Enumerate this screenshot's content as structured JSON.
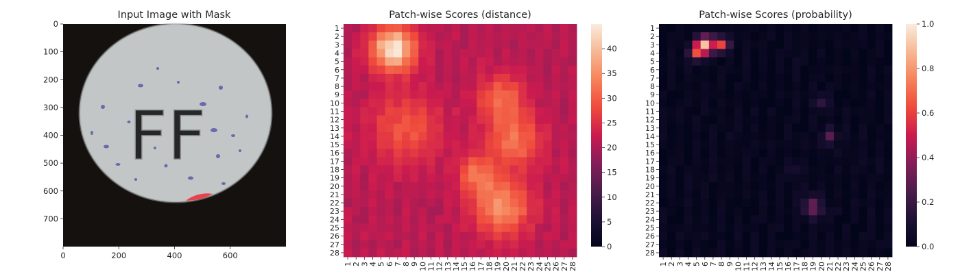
{
  "panels": {
    "image": {
      "title": "Input Image with Mask",
      "x_ticks": [
        "0",
        "200",
        "400",
        "600"
      ],
      "x_tick_values": [
        0,
        200,
        400,
        600
      ],
      "y_ticks": [
        "0",
        "100",
        "200",
        "300",
        "400",
        "500",
        "600",
        "700"
      ],
      "y_tick_values": [
        0,
        100,
        200,
        300,
        400,
        500,
        600,
        700
      ],
      "extent": [
        800,
        800
      ],
      "tablet_text": "FF",
      "colors": {
        "background": "#14110f",
        "tablet": "#c2c6c7",
        "mask": "#e8414a",
        "speckle": "#5a5aa8"
      }
    },
    "distance": {
      "title": "Patch-wise Scores (distance)",
      "colorbar_ticks": [
        "0",
        "5",
        "10",
        "15",
        "20",
        "25",
        "30",
        "35",
        "40"
      ],
      "colorbar_values": [
        0,
        5,
        10,
        15,
        20,
        25,
        30,
        35,
        40
      ],
      "colorbar_range": [
        0,
        45
      ],
      "colormap": "rocket"
    },
    "probability": {
      "title": "Patch-wise Scores (probability)",
      "colorbar_ticks": [
        "0.0",
        "0.2",
        "0.4",
        "0.6",
        "0.8",
        "1.0"
      ],
      "colorbar_values": [
        0.0,
        0.2,
        0.4,
        0.6,
        0.8,
        1.0
      ],
      "colorbar_range": [
        0,
        1
      ],
      "colormap": "rocket"
    }
  },
  "chart_data": [
    {
      "type": "image",
      "title": "Input Image with Mask",
      "xlim": [
        0,
        800
      ],
      "ylim": [
        800,
        0
      ],
      "x_ticks": [
        0,
        200,
        400,
        600
      ],
      "y_ticks": [
        0,
        100,
        200,
        300,
        400,
        500,
        600,
        700
      ]
    },
    {
      "type": "heatmap",
      "title": "Patch-wise Scores (distance)",
      "rows": 28,
      "cols": 28,
      "row_labels": [
        "1",
        "2",
        "3",
        "4",
        "5",
        "6",
        "7",
        "8",
        "9",
        "10",
        "11",
        "12",
        "13",
        "14",
        "15",
        "16",
        "17",
        "18",
        "19",
        "20",
        "21",
        "22",
        "23",
        "24",
        "25",
        "26",
        "27",
        "28"
      ],
      "col_labels": [
        "1",
        "2",
        "3",
        "4",
        "5",
        "6",
        "7",
        "8",
        "9",
        "10",
        "11",
        "12",
        "13",
        "14",
        "15",
        "16",
        "17",
        "18",
        "19",
        "20",
        "21",
        "22",
        "23",
        "24",
        "25",
        "26",
        "27",
        "28"
      ],
      "vmin": 0,
      "vmax": 45,
      "baseline": 21,
      "hotspots": [
        {
          "row": 3.5,
          "col": 6.5,
          "peak": 45,
          "spread": 1.8
        },
        {
          "row": 22.5,
          "col": 19.5,
          "peak": 35,
          "spread": 2.4
        },
        {
          "row": 14.5,
          "col": 21,
          "peak": 32,
          "spread": 2.2
        },
        {
          "row": 9.5,
          "col": 19.5,
          "peak": 31,
          "spread": 2.0
        },
        {
          "row": 18.5,
          "col": 16.5,
          "peak": 31,
          "spread": 1.6
        },
        {
          "row": 13,
          "col": 8,
          "peak": 29,
          "spread": 3.0
        }
      ]
    },
    {
      "type": "heatmap",
      "title": "Patch-wise Scores (probability)",
      "rows": 28,
      "cols": 28,
      "row_labels": [
        "1",
        "2",
        "3",
        "4",
        "5",
        "6",
        "7",
        "8",
        "9",
        "10",
        "11",
        "12",
        "13",
        "14",
        "15",
        "16",
        "17",
        "18",
        "19",
        "20",
        "21",
        "22",
        "23",
        "24",
        "25",
        "26",
        "27",
        "28"
      ],
      "col_labels": [
        "1",
        "2",
        "3",
        "4",
        "5",
        "6",
        "7",
        "8",
        "9",
        "10",
        "11",
        "12",
        "13",
        "14",
        "15",
        "16",
        "17",
        "18",
        "19",
        "20",
        "21",
        "22",
        "23",
        "24",
        "25",
        "26",
        "27",
        "28"
      ],
      "vmin": 0,
      "vmax": 1,
      "baseline": 0.02,
      "hotspots": [
        {
          "row": 3,
          "col": 6,
          "peak": 0.9,
          "spread": 0.7
        },
        {
          "row": 3,
          "col": 8,
          "peak": 0.62,
          "spread": 0.6
        },
        {
          "row": 4,
          "col": 5,
          "peak": 0.55,
          "spread": 0.6
        },
        {
          "row": 22.5,
          "col": 19,
          "peak": 0.3,
          "spread": 0.9
        },
        {
          "row": 14,
          "col": 21,
          "peak": 0.25,
          "spread": 0.7
        },
        {
          "row": 10,
          "col": 20,
          "peak": 0.2,
          "spread": 0.6
        },
        {
          "row": 18,
          "col": 17,
          "peak": 0.12,
          "spread": 0.6
        }
      ]
    }
  ]
}
